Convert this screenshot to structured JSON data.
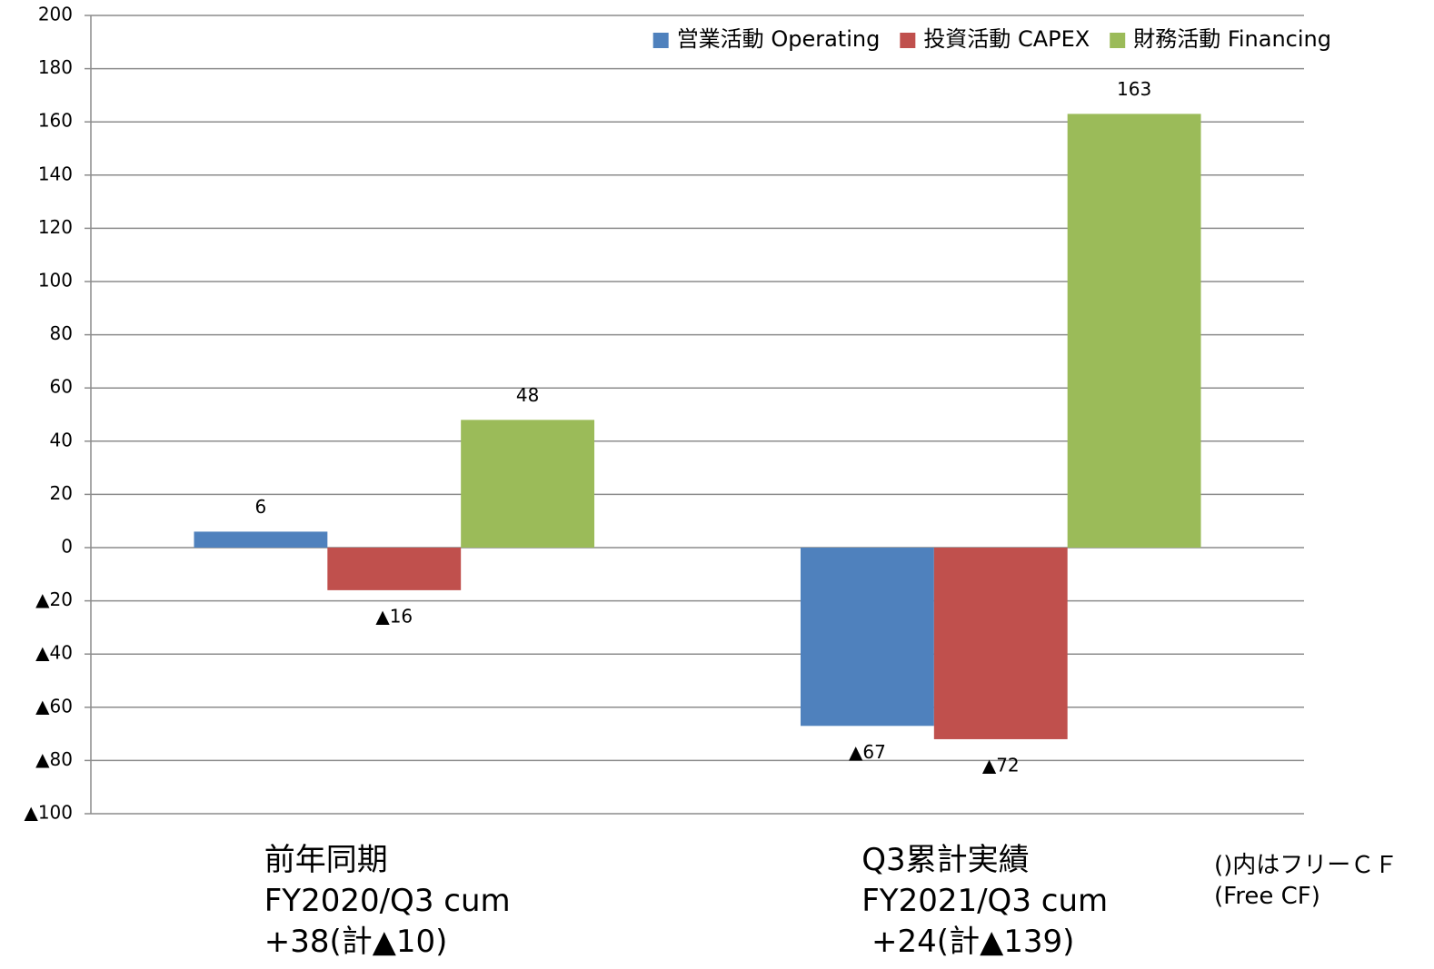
{
  "chart_data": {
    "type": "bar",
    "categories": [
      "前年同期\nFY2020/Q3 cum\n+38(計▲10)",
      "Q3累計実績\nFY2021/Q3 cum\n +24(計▲139)"
    ],
    "series": [
      {
        "name": "営業活動 Operating",
        "color": "#4f81bd",
        "values": [
          6,
          -67
        ],
        "value_labels": [
          "6",
          "▲67"
        ]
      },
      {
        "name": "投資活動 CAPEX",
        "color": "#c0504d",
        "values": [
          -16,
          -72
        ],
        "value_labels": [
          "▲16",
          "▲72"
        ]
      },
      {
        "name": "財務活動 Financing",
        "color": "#9bbb59",
        "values": [
          48,
          163
        ],
        "value_labels": [
          "48",
          "163"
        ]
      }
    ],
    "ylim": [
      -100,
      200
    ],
    "yticks": [
      {
        "value": -100,
        "label": "▲100"
      },
      {
        "value": -80,
        "label": "▲80"
      },
      {
        "value": -60,
        "label": "▲60"
      },
      {
        "value": -40,
        "label": "▲40"
      },
      {
        "value": -20,
        "label": "▲20"
      },
      0,
      20,
      40,
      60,
      80,
      100,
      120,
      140,
      160,
      180,
      200
    ],
    "grid": true,
    "legend": "top-right",
    "annotation": "()内はフリーＣＦ\n(Free CF)"
  }
}
